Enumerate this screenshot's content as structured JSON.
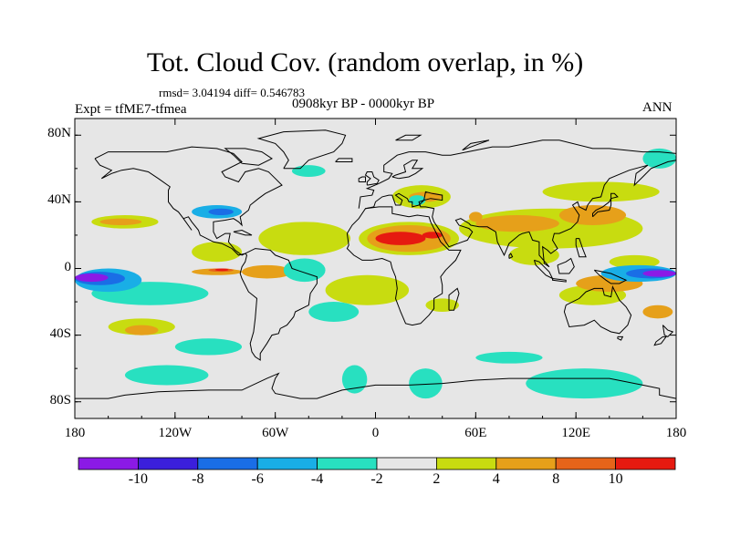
{
  "title": "Tot. Cloud Cov. (random overlap, in %)",
  "stats_line": "rmsd= 3.04194 diff= 0.546783",
  "experiment": "Expt = tfME7-tfmea",
  "period": "0908kyr BP - 0000kyr BP",
  "season": "ANN",
  "map": {
    "projection": "cylindrical equidistant",
    "lon_range": [
      -180,
      180
    ],
    "lat_range": [
      -90,
      90
    ],
    "y_ticks": [
      {
        "lat": 80,
        "label": "80N"
      },
      {
        "lat": 40,
        "label": "40N"
      },
      {
        "lat": 0,
        "label": "0"
      },
      {
        "lat": -40,
        "label": "40S"
      },
      {
        "lat": -80,
        "label": "80S"
      }
    ],
    "x_ticks": [
      {
        "lon": -180,
        "label": "180"
      },
      {
        "lon": -120,
        "label": "120W"
      },
      {
        "lon": -60,
        "label": "60W"
      },
      {
        "lon": 0,
        "label": "0"
      },
      {
        "lon": 60,
        "label": "60E"
      },
      {
        "lon": 120,
        "label": "120E"
      },
      {
        "lon": 180,
        "label": "180"
      }
    ],
    "background_color": "#e6e6e6",
    "coastline_color": "#000000"
  },
  "colorbar": {
    "bins": [
      {
        "color": "#8b1ae6"
      },
      {
        "color": "#3b1fdc"
      },
      {
        "color": "#1a6ee6"
      },
      {
        "color": "#19aee6"
      },
      {
        "color": "#28e0c0"
      },
      {
        "color": "#e6e6e6"
      },
      {
        "color": "#c8dc10"
      },
      {
        "color": "#e6a01a"
      },
      {
        "color": "#e6641a"
      },
      {
        "color": "#e61a10"
      }
    ],
    "labels": [
      "-10",
      "-8",
      "-6",
      "-4",
      "-2",
      "2",
      "4",
      "8",
      "10"
    ]
  }
}
